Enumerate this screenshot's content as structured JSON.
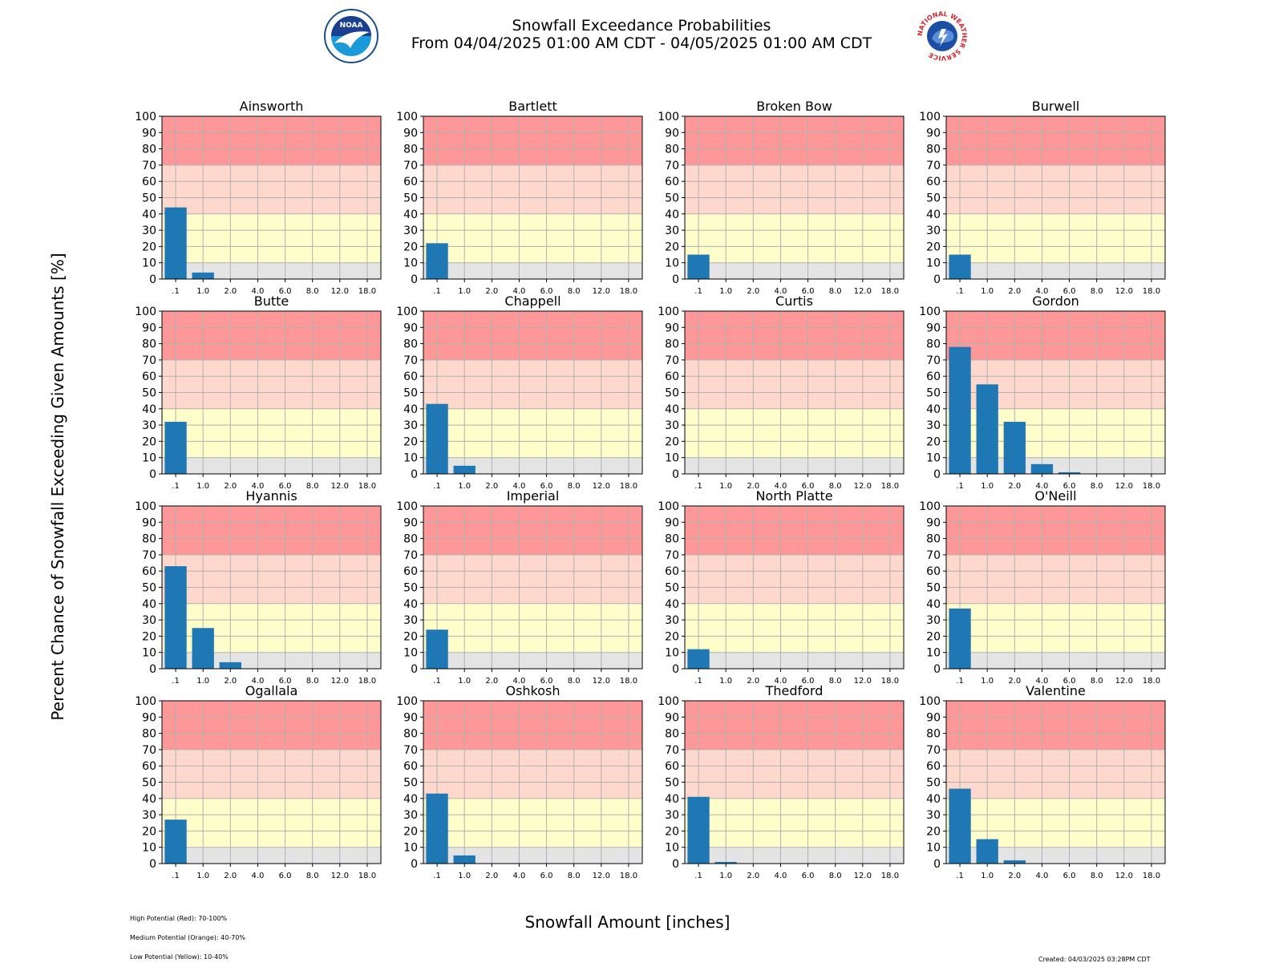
{
  "header": {
    "title": "Snowfall Exceedance Probabilities",
    "subtitle": "From 04/04/2025 01:00 AM CDT - 04/05/2025 01:00 AM CDT",
    "logos": [
      "noaa-logo",
      "national-weather-service-logo"
    ],
    "nws_logo_text": "NATIONAL WEATHER SERVICE"
  },
  "axes": {
    "ylabel": "Percent Chance of Snowfall Exceeding Given Amounts [%]",
    "xlabel": "Snowfall Amount [inches]"
  },
  "legend": {
    "high": "High Potential (Red): 70-100%",
    "medium": "Medium Potential (Orange): 40-70%",
    "low": "Low Potential (Yellow): 10-40%"
  },
  "footer": {
    "created": "Created: 04/03/2025 03:28PM CDT"
  },
  "colors": {
    "bar": "#1f77b4",
    "high": "#fe9898",
    "medium": "#fed8cc",
    "low": "#fefecb",
    "none": "#e4e4e4",
    "grid": "#b0b0b0"
  },
  "chart_data": [
    {
      "type": "bar",
      "title": "Ainsworth",
      "categories": [
        ".1",
        "1.0",
        "2.0",
        "4.0",
        "6.0",
        "8.0",
        "12.0",
        "18.0"
      ],
      "values": [
        44,
        4,
        0,
        0,
        0,
        0,
        0,
        0
      ],
      "ylim": [
        0,
        100
      ],
      "yticks": [
        0,
        10,
        20,
        30,
        40,
        50,
        60,
        70,
        80,
        90,
        100
      ],
      "grid": true
    },
    {
      "type": "bar",
      "title": "Bartlett",
      "categories": [
        ".1",
        "1.0",
        "2.0",
        "4.0",
        "6.0",
        "8.0",
        "12.0",
        "18.0"
      ],
      "values": [
        22,
        0,
        0,
        0,
        0,
        0,
        0,
        0
      ],
      "ylim": [
        0,
        100
      ],
      "yticks": [
        0,
        10,
        20,
        30,
        40,
        50,
        60,
        70,
        80,
        90,
        100
      ],
      "grid": true
    },
    {
      "type": "bar",
      "title": "Broken Bow",
      "categories": [
        ".1",
        "1.0",
        "2.0",
        "4.0",
        "6.0",
        "8.0",
        "12.0",
        "18.0"
      ],
      "values": [
        15,
        0,
        0,
        0,
        0,
        0,
        0,
        0
      ],
      "ylim": [
        0,
        100
      ],
      "yticks": [
        0,
        10,
        20,
        30,
        40,
        50,
        60,
        70,
        80,
        90,
        100
      ],
      "grid": true
    },
    {
      "type": "bar",
      "title": "Burwell",
      "categories": [
        ".1",
        "1.0",
        "2.0",
        "4.0",
        "6.0",
        "8.0",
        "12.0",
        "18.0"
      ],
      "values": [
        15,
        0,
        0,
        0,
        0,
        0,
        0,
        0
      ],
      "ylim": [
        0,
        100
      ],
      "yticks": [
        0,
        10,
        20,
        30,
        40,
        50,
        60,
        70,
        80,
        90,
        100
      ],
      "grid": true
    },
    {
      "type": "bar",
      "title": "Butte",
      "categories": [
        ".1",
        "1.0",
        "2.0",
        "4.0",
        "6.0",
        "8.0",
        "12.0",
        "18.0"
      ],
      "values": [
        32,
        0,
        0,
        0,
        0,
        0,
        0,
        0
      ],
      "ylim": [
        0,
        100
      ],
      "yticks": [
        0,
        10,
        20,
        30,
        40,
        50,
        60,
        70,
        80,
        90,
        100
      ],
      "grid": true
    },
    {
      "type": "bar",
      "title": "Chappell",
      "categories": [
        ".1",
        "1.0",
        "2.0",
        "4.0",
        "6.0",
        "8.0",
        "12.0",
        "18.0"
      ],
      "values": [
        43,
        5,
        0,
        0,
        0,
        0,
        0,
        0
      ],
      "ylim": [
        0,
        100
      ],
      "yticks": [
        0,
        10,
        20,
        30,
        40,
        50,
        60,
        70,
        80,
        90,
        100
      ],
      "grid": true
    },
    {
      "type": "bar",
      "title": "Curtis",
      "categories": [
        ".1",
        "1.0",
        "2.0",
        "4.0",
        "6.0",
        "8.0",
        "12.0",
        "18.0"
      ],
      "values": [
        0,
        0,
        0,
        0,
        0,
        0,
        0,
        0
      ],
      "ylim": [
        0,
        100
      ],
      "yticks": [
        0,
        10,
        20,
        30,
        40,
        50,
        60,
        70,
        80,
        90,
        100
      ],
      "grid": true
    },
    {
      "type": "bar",
      "title": "Gordon",
      "categories": [
        ".1",
        "1.0",
        "2.0",
        "4.0",
        "6.0",
        "8.0",
        "12.0",
        "18.0"
      ],
      "values": [
        78,
        55,
        32,
        6,
        1,
        0,
        0,
        0
      ],
      "ylim": [
        0,
        100
      ],
      "yticks": [
        0,
        10,
        20,
        30,
        40,
        50,
        60,
        70,
        80,
        90,
        100
      ],
      "grid": true
    },
    {
      "type": "bar",
      "title": "Hyannis",
      "categories": [
        ".1",
        "1.0",
        "2.0",
        "4.0",
        "6.0",
        "8.0",
        "12.0",
        "18.0"
      ],
      "values": [
        63,
        25,
        4,
        0,
        0,
        0,
        0,
        0
      ],
      "ylim": [
        0,
        100
      ],
      "yticks": [
        0,
        10,
        20,
        30,
        40,
        50,
        60,
        70,
        80,
        90,
        100
      ],
      "grid": true
    },
    {
      "type": "bar",
      "title": "Imperial",
      "categories": [
        ".1",
        "1.0",
        "2.0",
        "4.0",
        "6.0",
        "8.0",
        "12.0",
        "18.0"
      ],
      "values": [
        24,
        0,
        0,
        0,
        0,
        0,
        0,
        0
      ],
      "ylim": [
        0,
        100
      ],
      "yticks": [
        0,
        10,
        20,
        30,
        40,
        50,
        60,
        70,
        80,
        90,
        100
      ],
      "grid": true
    },
    {
      "type": "bar",
      "title": "North Platte",
      "categories": [
        ".1",
        "1.0",
        "2.0",
        "4.0",
        "6.0",
        "8.0",
        "12.0",
        "18.0"
      ],
      "values": [
        12,
        0,
        0,
        0,
        0,
        0,
        0,
        0
      ],
      "ylim": [
        0,
        100
      ],
      "yticks": [
        0,
        10,
        20,
        30,
        40,
        50,
        60,
        70,
        80,
        90,
        100
      ],
      "grid": true
    },
    {
      "type": "bar",
      "title": "O'Neill",
      "categories": [
        ".1",
        "1.0",
        "2.0",
        "4.0",
        "6.0",
        "8.0",
        "12.0",
        "18.0"
      ],
      "values": [
        37,
        0,
        0,
        0,
        0,
        0,
        0,
        0
      ],
      "ylim": [
        0,
        100
      ],
      "yticks": [
        0,
        10,
        20,
        30,
        40,
        50,
        60,
        70,
        80,
        90,
        100
      ],
      "grid": true
    },
    {
      "type": "bar",
      "title": "Ogallala",
      "categories": [
        ".1",
        "1.0",
        "2.0",
        "4.0",
        "6.0",
        "8.0",
        "12.0",
        "18.0"
      ],
      "values": [
        27,
        0,
        0,
        0,
        0,
        0,
        0,
        0
      ],
      "ylim": [
        0,
        100
      ],
      "yticks": [
        0,
        10,
        20,
        30,
        40,
        50,
        60,
        70,
        80,
        90,
        100
      ],
      "grid": true
    },
    {
      "type": "bar",
      "title": "Oshkosh",
      "categories": [
        ".1",
        "1.0",
        "2.0",
        "4.0",
        "6.0",
        "8.0",
        "12.0",
        "18.0"
      ],
      "values": [
        43,
        5,
        0,
        0,
        0,
        0,
        0,
        0
      ],
      "ylim": [
        0,
        100
      ],
      "yticks": [
        0,
        10,
        20,
        30,
        40,
        50,
        60,
        70,
        80,
        90,
        100
      ],
      "grid": true
    },
    {
      "type": "bar",
      "title": "Thedford",
      "categories": [
        ".1",
        "1.0",
        "2.0",
        "4.0",
        "6.0",
        "8.0",
        "12.0",
        "18.0"
      ],
      "values": [
        41,
        1,
        0,
        0,
        0,
        0,
        0,
        0
      ],
      "ylim": [
        0,
        100
      ],
      "yticks": [
        0,
        10,
        20,
        30,
        40,
        50,
        60,
        70,
        80,
        90,
        100
      ],
      "grid": true
    },
    {
      "type": "bar",
      "title": "Valentine",
      "categories": [
        ".1",
        "1.0",
        "2.0",
        "4.0",
        "6.0",
        "8.0",
        "12.0",
        "18.0"
      ],
      "values": [
        46,
        15,
        2,
        0,
        0,
        0,
        0,
        0
      ],
      "ylim": [
        0,
        100
      ],
      "yticks": [
        0,
        10,
        20,
        30,
        40,
        50,
        60,
        70,
        80,
        90,
        100
      ],
      "grid": true
    }
  ]
}
